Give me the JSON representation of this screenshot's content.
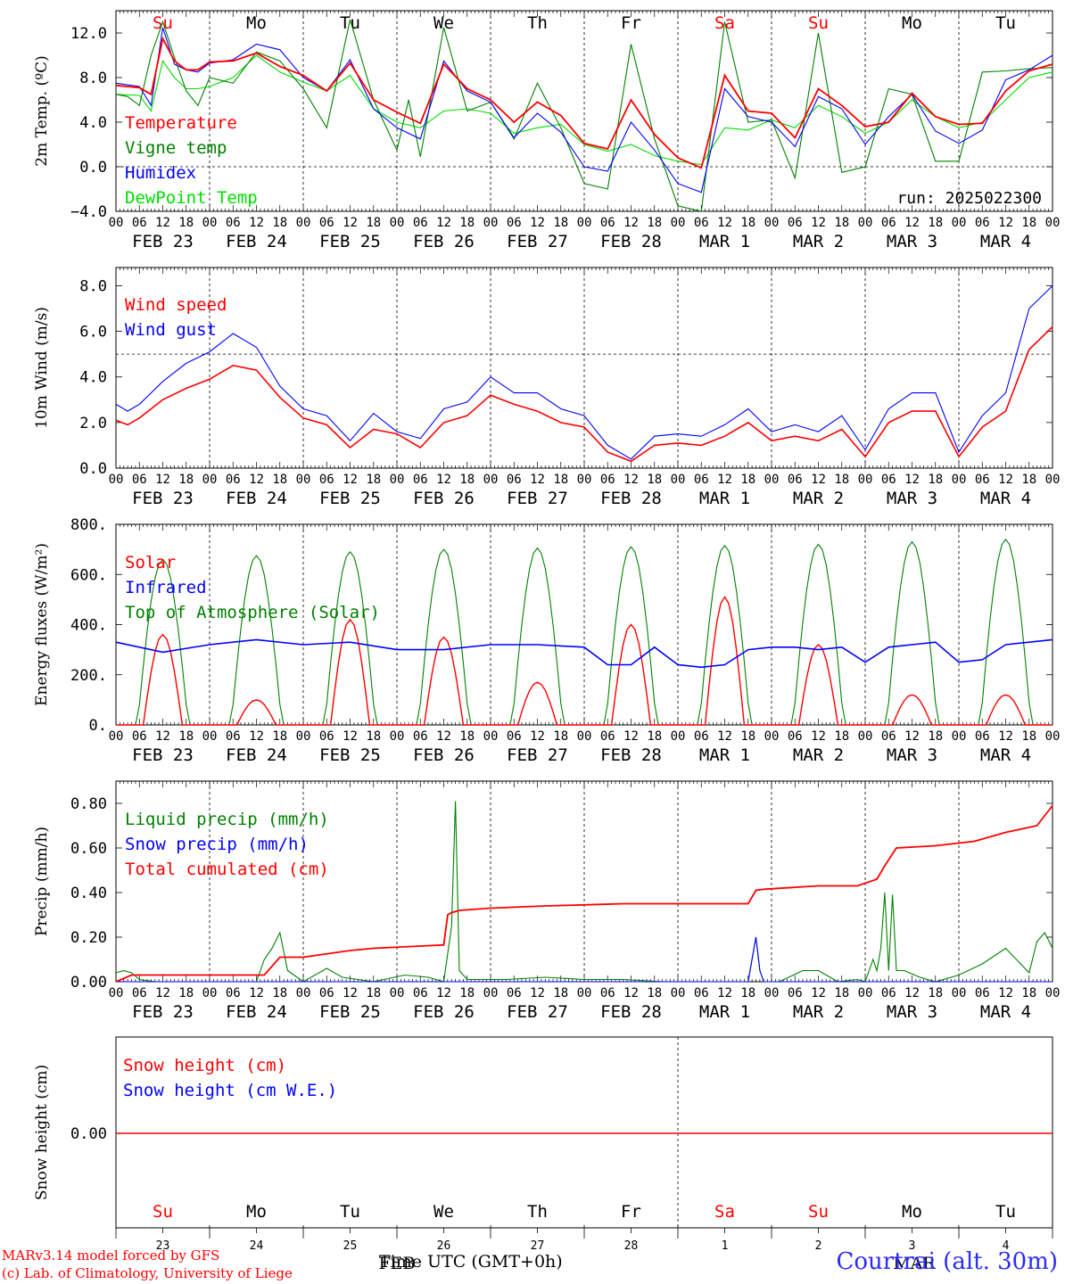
{
  "run_label": "run: 2025022300",
  "day_abbrevs": [
    {
      "label": "Su",
      "color": "#ff0000"
    },
    {
      "label": "Mo",
      "color": "#000000"
    },
    {
      "label": "Tu",
      "color": "#000000"
    },
    {
      "label": "We",
      "color": "#000000"
    },
    {
      "label": "Th",
      "color": "#000000"
    },
    {
      "label": "Fr",
      "color": "#000000"
    },
    {
      "label": "Sa",
      "color": "#ff0000"
    },
    {
      "label": "Su",
      "color": "#ff0000"
    },
    {
      "label": "Mo",
      "color": "#000000"
    },
    {
      "label": "Tu",
      "color": "#000000"
    }
  ],
  "date_labels": [
    "FEB 23",
    "FEB 24",
    "FEB 25",
    "FEB 26",
    "FEB 27",
    "FEB 28",
    "MAR  1",
    "MAR  2",
    "MAR  3",
    "MAR  4"
  ],
  "hour_ticks": [
    "00",
    "06",
    "12",
    "18"
  ],
  "hour_tick_end": "00",
  "bottom_day_numbers": [
    "23",
    "24",
    "25",
    "26",
    "27",
    "28",
    "1",
    "2",
    "3",
    "4"
  ],
  "bottom_month_labels": {
    "left": "FEB",
    "right": "MAR"
  },
  "footer": {
    "credit_line1": "MARv3.14 model forced by GFS",
    "credit_line2": "(c) Lab. of Climatology, University of Liege",
    "xlabel": "Time UTC (GMT+0h)",
    "station": "Courtrai (alt. 30m)"
  },
  "colors": {
    "red": "#ff0000",
    "green": "#008000",
    "blue": "#0000ff",
    "lightgreen": "#00dd00"
  },
  "chart_data": [
    {
      "type": "line",
      "ylabel": "2m Temp. (ºC)",
      "ylim": [
        -4,
        14
      ],
      "yticks": [
        "12.0",
        "8.0",
        "4.0",
        "0.0",
        "−4.0"
      ],
      "ytick_values": [
        12,
        8,
        4,
        0,
        -4
      ],
      "dashed_ref": 0,
      "x_unit": "hours since FEB 23 00 UTC",
      "series": [
        {
          "name": "Temperature",
          "color": "red",
          "x": [
            0,
            6,
            9,
            12,
            15,
            18,
            21,
            24,
            30,
            36,
            42,
            48,
            54,
            60,
            66,
            72,
            78,
            84,
            90,
            96,
            102,
            108,
            114,
            120,
            126,
            132,
            138,
            144,
            150,
            156,
            162,
            168,
            174,
            180,
            186,
            192,
            198,
            204,
            210,
            216,
            222,
            228,
            234,
            240
          ],
          "values": [
            7.3,
            7.1,
            6.5,
            11.5,
            9.5,
            8.7,
            8.7,
            9.4,
            9.5,
            10.2,
            9.0,
            8.2,
            6.8,
            9.3,
            6.0,
            4.9,
            3.9,
            9.2,
            7.0,
            6.0,
            4.0,
            5.8,
            4.6,
            2.1,
            1.6,
            6.0,
            2.9,
            0.8,
            -0.1,
            8.2,
            5.0,
            4.8,
            2.6,
            7.0,
            5.5,
            3.6,
            4.0,
            6.6,
            4.5,
            3.8,
            3.9,
            6.8,
            8.6,
            9.2
          ]
        },
        {
          "name": "Vigne temp",
          "color": "green",
          "x": [
            0,
            3,
            6,
            9,
            12,
            15,
            18,
            21,
            24,
            30,
            36,
            42,
            48,
            54,
            60,
            66,
            72,
            75,
            78,
            84,
            90,
            96,
            102,
            108,
            114,
            120,
            126,
            132,
            138,
            144,
            150,
            156,
            162,
            168,
            174,
            180,
            186,
            192,
            198,
            204,
            210,
            216,
            222,
            228,
            234,
            240
          ],
          "values": [
            6.5,
            6.3,
            5.5,
            10.0,
            13.0,
            9.8,
            6.8,
            5.5,
            8.0,
            7.5,
            10.3,
            9.5,
            7.0,
            3.5,
            13.2,
            6.0,
            1.5,
            6.0,
            0.9,
            12.5,
            5.0,
            5.8,
            2.5,
            7.5,
            3.5,
            -1.5,
            -2.0,
            11.0,
            2.5,
            -3.5,
            -4.0,
            13.0,
            4.0,
            4.2,
            -1.0,
            12.0,
            -0.5,
            0.0,
            7.0,
            6.5,
            0.5,
            0.5,
            8.5,
            8.6,
            8.8,
            8.9
          ]
        },
        {
          "name": "Humidex",
          "color": "blue",
          "x": [
            0,
            6,
            9,
            12,
            15,
            18,
            21,
            24,
            30,
            36,
            42,
            48,
            54,
            60,
            66,
            72,
            78,
            84,
            90,
            96,
            102,
            108,
            114,
            120,
            126,
            132,
            138,
            144,
            150,
            156,
            162,
            168,
            174,
            180,
            186,
            192,
            198,
            204,
            210,
            216,
            222,
            228,
            234,
            240
          ],
          "values": [
            7.5,
            7.2,
            5.5,
            12.5,
            9.2,
            8.7,
            8.5,
            9.3,
            9.6,
            11.0,
            10.5,
            8.0,
            6.8,
            9.6,
            5.2,
            3.5,
            2.5,
            9.5,
            6.8,
            5.8,
            2.6,
            4.8,
            3.1,
            0.0,
            -0.4,
            4.0,
            1.5,
            -1.5,
            -2.3,
            7.0,
            4.5,
            4.0,
            1.8,
            6.3,
            5.2,
            2.0,
            4.5,
            6.5,
            3.2,
            2.1,
            3.3,
            7.8,
            8.7,
            10.0
          ]
        },
        {
          "name": "DewPoint Temp",
          "color": "lightgreen",
          "x": [
            0,
            6,
            9,
            12,
            15,
            18,
            21,
            24,
            30,
            36,
            42,
            48,
            54,
            60,
            66,
            72,
            78,
            84,
            90,
            96,
            102,
            108,
            114,
            120,
            126,
            132,
            138,
            144,
            150,
            156,
            162,
            168,
            174,
            180,
            186,
            192,
            198,
            204,
            210,
            216,
            222,
            228,
            234,
            240
          ],
          "values": [
            6.5,
            6.4,
            5.0,
            9.5,
            8.0,
            7.0,
            7.0,
            7.2,
            8.0,
            10.0,
            8.5,
            7.6,
            6.8,
            8.2,
            5.2,
            4.0,
            3.5,
            5.0,
            5.2,
            4.8,
            3.0,
            3.5,
            3.8,
            2.0,
            1.4,
            2.0,
            1.0,
            0.5,
            0.2,
            3.5,
            3.3,
            4.2,
            3.5,
            5.5,
            4.5,
            3.0,
            4.0,
            6.0,
            4.5,
            3.5,
            4.0,
            6.0,
            8.0,
            8.5
          ]
        }
      ]
    },
    {
      "type": "line",
      "ylabel": "10m Wind (m/s)",
      "ylim": [
        0,
        8.8
      ],
      "yticks": [
        "8.0",
        "6.0",
        "4.0",
        "2.0",
        "0.0"
      ],
      "ytick_values": [
        8,
        6,
        4,
        2,
        0
      ],
      "dashed_ref": 5,
      "series": [
        {
          "name": "Wind speed",
          "color": "red",
          "x": [
            0,
            3,
            6,
            12,
            18,
            24,
            30,
            36,
            42,
            48,
            54,
            60,
            66,
            72,
            78,
            84,
            90,
            96,
            102,
            108,
            114,
            120,
            126,
            132,
            138,
            144,
            150,
            156,
            162,
            168,
            174,
            180,
            186,
            192,
            198,
            204,
            210,
            216,
            222,
            228,
            234,
            240
          ],
          "values": [
            2.1,
            1.9,
            2.2,
            3.0,
            3.5,
            3.9,
            4.5,
            4.3,
            3.1,
            2.2,
            1.9,
            0.9,
            1.7,
            1.5,
            0.9,
            2.0,
            2.3,
            3.2,
            2.8,
            2.5,
            2.0,
            1.8,
            0.7,
            0.3,
            1.0,
            1.1,
            1.0,
            1.4,
            2.0,
            1.2,
            1.4,
            1.2,
            1.7,
            0.5,
            2.0,
            2.5,
            2.5,
            0.5,
            1.8,
            2.5,
            5.2,
            6.2
          ]
        },
        {
          "name": "Wind gust",
          "color": "blue",
          "x": [
            0,
            3,
            6,
            12,
            18,
            24,
            30,
            36,
            42,
            48,
            54,
            60,
            66,
            72,
            78,
            84,
            90,
            96,
            102,
            108,
            114,
            120,
            126,
            132,
            138,
            144,
            150,
            156,
            162,
            168,
            174,
            180,
            186,
            192,
            198,
            204,
            210,
            216,
            222,
            228,
            234,
            240
          ],
          "values": [
            2.8,
            2.5,
            2.8,
            3.8,
            4.6,
            5.1,
            5.9,
            5.3,
            3.6,
            2.6,
            2.3,
            1.2,
            2.4,
            1.6,
            1.3,
            2.6,
            2.9,
            4.0,
            3.3,
            3.3,
            2.6,
            2.3,
            1.0,
            0.4,
            1.4,
            1.5,
            1.4,
            1.9,
            2.6,
            1.6,
            1.9,
            1.6,
            2.3,
            0.8,
            2.6,
            3.3,
            3.3,
            0.7,
            2.3,
            3.3,
            7.0,
            8.0
          ]
        }
      ]
    },
    {
      "type": "line",
      "ylabel": "Energy fluxes (W/m²)",
      "ylim": [
        0,
        800
      ],
      "yticks": [
        "800.",
        "600.",
        "400.",
        "200.",
        "0."
      ],
      "ytick_values": [
        800,
        600,
        400,
        200,
        0
      ],
      "series": [
        {
          "name": "Solar",
          "color": "red",
          "day_peaks": [
            360,
            100,
            420,
            350,
            170,
            400,
            510,
            320,
            120,
            120
          ]
        },
        {
          "name": "Infrared",
          "color": "blue",
          "x": [
            0,
            12,
            24,
            36,
            48,
            60,
            72,
            84,
            96,
            108,
            120,
            126,
            132,
            138,
            144,
            150,
            156,
            162,
            168,
            174,
            180,
            186,
            192,
            198,
            204,
            210,
            216,
            222,
            228,
            240
          ],
          "values": [
            330,
            290,
            320,
            340,
            320,
            330,
            300,
            300,
            320,
            320,
            310,
            240,
            240,
            310,
            240,
            230,
            240,
            300,
            310,
            310,
            300,
            310,
            250,
            310,
            320,
            330,
            250,
            260,
            320,
            340
          ]
        },
        {
          "name": "Top of Atmosphere (Solar)",
          "color": "green",
          "day_peaks": [
            660,
            675,
            690,
            700,
            705,
            710,
            715,
            720,
            730,
            740
          ]
        }
      ]
    },
    {
      "type": "line",
      "ylabel": "Precip (mm/h)",
      "ylim": [
        0,
        0.9
      ],
      "yticks": [
        "0.80",
        "0.60",
        "0.40",
        "0.20",
        "0.00"
      ],
      "ytick_values": [
        0.8,
        0.6,
        0.4,
        0.2,
        0.0
      ],
      "series": [
        {
          "name": "Liquid precip (mm/h)",
          "color": "green",
          "x": [
            0,
            2,
            4,
            6,
            10,
            24,
            36,
            38,
            40,
            42,
            44,
            48,
            54,
            58,
            62,
            66,
            74,
            80,
            84,
            86,
            87,
            88,
            90,
            100,
            110,
            120,
            130,
            140,
            150,
            162,
            163,
            164,
            165,
            166,
            170,
            176,
            180,
            185,
            190,
            192,
            194,
            195,
            196,
            197,
            198,
            199,
            200,
            202,
            206,
            210,
            216,
            222,
            228,
            234,
            236,
            238,
            240
          ],
          "values": [
            0.04,
            0.05,
            0.04,
            0.01,
            0.0,
            0.0,
            0.0,
            0.1,
            0.15,
            0.22,
            0.05,
            0.0,
            0.06,
            0.02,
            0.01,
            0.0,
            0.03,
            0.02,
            0.0,
            0.25,
            0.81,
            0.05,
            0.01,
            0.01,
            0.02,
            0.01,
            0.01,
            0.0,
            0.0,
            0.0,
            0.1,
            0.2,
            0.05,
            0.0,
            0.0,
            0.05,
            0.05,
            0.0,
            0.01,
            0.0,
            0.1,
            0.05,
            0.15,
            0.4,
            0.05,
            0.39,
            0.05,
            0.05,
            0.02,
            0.0,
            0.03,
            0.08,
            0.15,
            0.04,
            0.18,
            0.22,
            0.15
          ]
        },
        {
          "name": "Snow precip (mm/h)",
          "color": "blue",
          "x": [
            0,
            162,
            163,
            164,
            165,
            166,
            240
          ],
          "values": [
            0,
            0,
            0.1,
            0.2,
            0.05,
            0,
            0
          ]
        },
        {
          "name": "Total cumulated (cm)",
          "color": "red",
          "x": [
            0,
            4,
            38,
            42,
            48,
            60,
            66,
            84,
            85,
            86,
            88,
            96,
            110,
            120,
            130,
            150,
            162,
            164,
            166,
            180,
            185,
            190,
            195,
            197,
            200,
            210,
            220,
            228,
            236,
            240
          ],
          "values": [
            0.0,
            0.03,
            0.03,
            0.11,
            0.11,
            0.14,
            0.15,
            0.165,
            0.3,
            0.31,
            0.32,
            0.33,
            0.34,
            0.345,
            0.35,
            0.35,
            0.35,
            0.41,
            0.415,
            0.43,
            0.43,
            0.43,
            0.46,
            0.52,
            0.6,
            0.61,
            0.63,
            0.67,
            0.7,
            0.79
          ]
        }
      ]
    },
    {
      "type": "line",
      "ylabel": "Snow height (cm)",
      "yticks": [
        "0.00"
      ],
      "ytick_values": [
        0
      ],
      "series": [
        {
          "name": "Snow height (cm)",
          "color": "red",
          "x": [
            0,
            240
          ],
          "values": [
            0,
            0
          ]
        },
        {
          "name": "Snow height (cm W.E.)",
          "color": "blue",
          "x": [
            0,
            240
          ],
          "values": [
            0,
            0
          ]
        }
      ]
    }
  ]
}
